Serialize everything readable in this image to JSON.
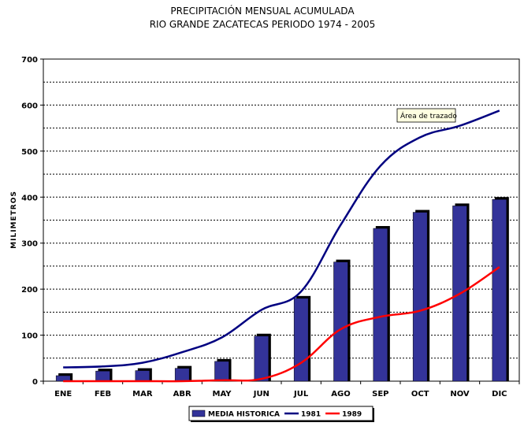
{
  "chart_data": {
    "type": "bar",
    "title": "PRECIPITACIÓN MENSUAL ACUMULADA",
    "subtitle": "RIO GRANDE ZACATECAS PERIODO 1974 - 2005",
    "xlabel": "",
    "ylabel": "MILIMETROS",
    "ylim": [
      0,
      700
    ],
    "yticks": [
      0,
      100,
      200,
      300,
      400,
      500,
      600,
      700
    ],
    "grid": true,
    "legend_position": "bottom",
    "categories": [
      "ENE",
      "FEB",
      "MAR",
      "ABR",
      "MAY",
      "JUN",
      "JUL",
      "AGO",
      "SEP",
      "OCT",
      "NOV",
      "DIC"
    ],
    "series": [
      {
        "name": "MEDIA HISTORICA",
        "type": "bar",
        "color": "#333399",
        "values": [
          12,
          22,
          23,
          28,
          43,
          98,
          180,
          259,
          332,
          367,
          381,
          395
        ]
      },
      {
        "name": "1981",
        "type": "line",
        "color": "#000080",
        "values": [
          30,
          32,
          40,
          63,
          95,
          155,
          195,
          340,
          468,
          530,
          555,
          588
        ]
      },
      {
        "name": "1989",
        "type": "line",
        "color": "#ff0000",
        "values": [
          0,
          0,
          0,
          0,
          2,
          5,
          40,
          113,
          140,
          153,
          190,
          248
        ]
      }
    ],
    "annotations": [
      {
        "text": "Área de trazado"
      }
    ]
  }
}
